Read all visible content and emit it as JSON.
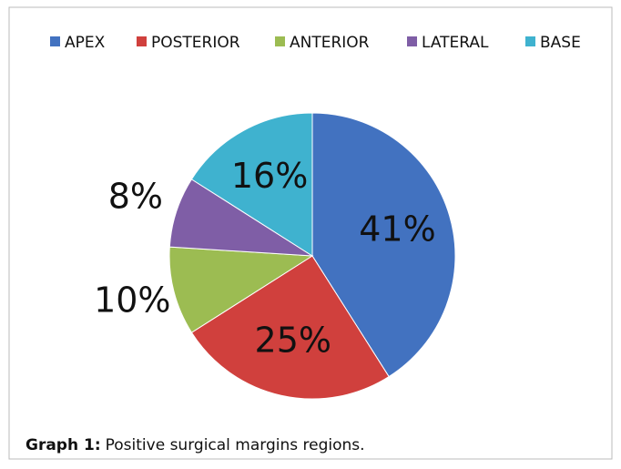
{
  "chart_data": {
    "type": "pie",
    "categories": [
      "APEX",
      "POSTERIOR",
      "ANTERIOR",
      "LATERAL",
      "BASE"
    ],
    "values": [
      41,
      25,
      10,
      8,
      16
    ],
    "value_labels": [
      "41%",
      "25%",
      "10%",
      "8%",
      "16%"
    ],
    "colors": [
      "#4272c0",
      "#d0403d",
      "#9cbc52",
      "#7f5ea6",
      "#3fb2cf"
    ],
    "legend": "top",
    "caption": {
      "label": "Graph 1:",
      "text": "Positive surgical margins regions."
    }
  }
}
